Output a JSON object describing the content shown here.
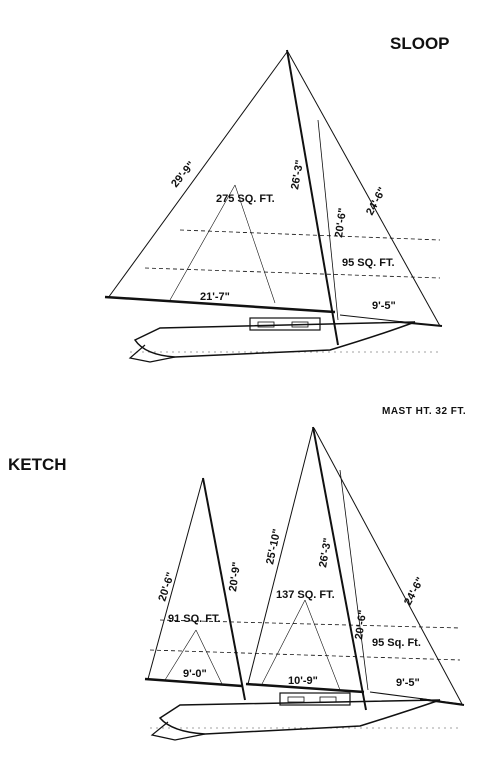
{
  "sloop": {
    "title": "SLOOP",
    "luff_dim": "29'-9\"",
    "mast_dim": "26'-3\"",
    "forestay_dim": "24'-6\"",
    "jib_luff_dim": "20'-6\"",
    "main_area": "275 SQ. FT.",
    "jib_area": "95 SQ. FT.",
    "boom_dim": "21'-7\"",
    "jib_foot_dim": "9'-5\""
  },
  "mast_height": "MAST HT.  32 FT.",
  "ketch": {
    "title": "KETCH",
    "mizzen_leech_dim": "20'-6\"",
    "mizzen_luff_dim": "20'-9\"",
    "mizzen_area": "91 SQ. FT.",
    "mizzen_foot_dim": "9'-0\"",
    "main_leech_dim": "25'-10\"",
    "main_mast_dim": "26'-3\"",
    "main_area": "137 SQ. FT.",
    "main_foot_dim": "10'-9\"",
    "jib_luff_dim": "20'-6\"",
    "forestay_dim": "24'-6\"",
    "jib_area": "95 Sq. Ft.",
    "jib_foot_dim": "9'-5\""
  }
}
